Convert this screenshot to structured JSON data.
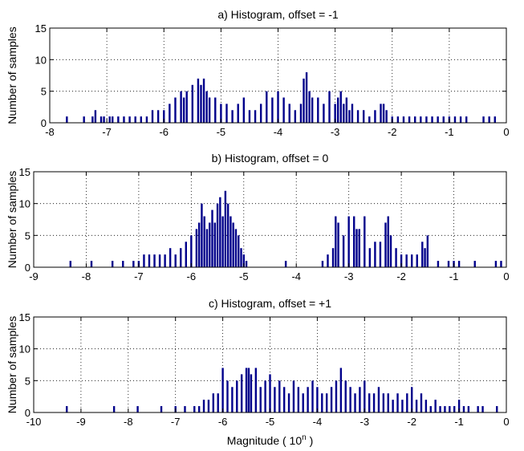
{
  "chart_data": [
    {
      "type": "bar",
      "title": "a) Histogram, offset = -1",
      "ylabel": "Number of samples",
      "xlim": [
        -8,
        0
      ],
      "ylim": [
        0,
        15
      ],
      "xticks": [
        "-8",
        "-7",
        "-6",
        "-5",
        "-4",
        "-3",
        "-2",
        "-1",
        "0"
      ],
      "yticks": [
        "0",
        "5",
        "10",
        "15"
      ],
      "grid": true,
      "color": "#00008b",
      "x": [
        -7.7,
        -7.4,
        -7.25,
        -7.2,
        -7.1,
        -7.05,
        -6.95,
        -6.9,
        -6.8,
        -6.7,
        -6.6,
        -6.5,
        -6.4,
        -6.3,
        -6.2,
        -6.1,
        -6.0,
        -5.9,
        -5.8,
        -5.7,
        -5.65,
        -5.6,
        -5.5,
        -5.4,
        -5.35,
        -5.3,
        -5.25,
        -5.2,
        -5.1,
        -5.0,
        -4.9,
        -4.8,
        -4.7,
        -4.6,
        -4.5,
        -4.4,
        -4.3,
        -4.2,
        -4.1,
        -4.0,
        -3.9,
        -3.8,
        -3.7,
        -3.6,
        -3.55,
        -3.5,
        -3.45,
        -3.4,
        -3.3,
        -3.2,
        -3.1,
        -3.0,
        -2.95,
        -2.9,
        -2.85,
        -2.8,
        -2.75,
        -2.7,
        -2.6,
        -2.5,
        -2.4,
        -2.3,
        -2.2,
        -2.15,
        -2.1,
        -2.0,
        -1.9,
        -1.8,
        -1.7,
        -1.6,
        -1.5,
        -1.4,
        -1.3,
        -1.2,
        -1.1,
        -1.0,
        -0.9,
        -0.8,
        -0.7,
        -0.4,
        -0.3,
        -0.2
      ],
      "values": [
        1,
        1,
        1,
        2,
        1,
        1,
        1,
        1,
        1,
        1,
        1,
        1,
        1,
        1,
        2,
        2,
        2,
        3,
        4,
        5,
        4,
        5,
        6,
        7,
        6,
        7,
        5,
        4,
        4,
        3,
        3,
        2,
        3,
        4,
        2,
        2,
        3,
        5,
        4,
        5,
        4,
        3,
        2,
        3,
        7,
        8,
        5,
        4,
        4,
        3,
        5,
        3,
        4,
        5,
        3,
        4,
        2,
        3,
        2,
        2,
        1,
        2,
        3,
        3,
        2,
        1,
        1,
        1,
        1,
        1,
        1,
        1,
        1,
        1,
        1,
        1,
        1,
        1,
        1,
        1,
        1,
        1
      ]
    },
    {
      "type": "bar",
      "title": "b) Histogram, offset = 0",
      "ylabel": "Number of samples",
      "xlim": [
        -9,
        0
      ],
      "ylim": [
        0,
        15
      ],
      "xticks": [
        "-9",
        "-8",
        "-7",
        "-6",
        "-5",
        "-4",
        "-3",
        "-2",
        "-1",
        "0"
      ],
      "yticks": [
        "0",
        "5",
        "10",
        "15"
      ],
      "grid": true,
      "color": "#00008b",
      "x": [
        -8.3,
        -7.9,
        -7.5,
        -7.3,
        -7.1,
        -7.0,
        -6.9,
        -6.8,
        -6.7,
        -6.6,
        -6.5,
        -6.4,
        -6.3,
        -6.2,
        -6.1,
        -6.0,
        -5.9,
        -5.85,
        -5.8,
        -5.75,
        -5.7,
        -5.65,
        -5.6,
        -5.55,
        -5.5,
        -5.45,
        -5.4,
        -5.35,
        -5.3,
        -5.25,
        -5.2,
        -5.15,
        -5.1,
        -5.05,
        -5.0,
        -4.95,
        -4.2,
        -3.5,
        -3.4,
        -3.3,
        -3.25,
        -3.2,
        -3.1,
        -3.0,
        -2.9,
        -2.85,
        -2.8,
        -2.7,
        -2.6,
        -2.5,
        -2.4,
        -2.3,
        -2.25,
        -2.2,
        -2.1,
        -2.0,
        -1.9,
        -1.8,
        -1.7,
        -1.6,
        -1.55,
        -1.5,
        -1.3,
        -1.1,
        -1.0,
        -0.9,
        -0.6,
        -0.2,
        -0.1
      ],
      "values": [
        1,
        1,
        1,
        1,
        1,
        1,
        2,
        2,
        2,
        2,
        2,
        3,
        2,
        3,
        4,
        5,
        6,
        7,
        10,
        8,
        6,
        7,
        9,
        7,
        10,
        11,
        8,
        12,
        10,
        8,
        7,
        6,
        5,
        3,
        2,
        1,
        1,
        1,
        2,
        3,
        8,
        7,
        5,
        8,
        8,
        6,
        6,
        8,
        3,
        4,
        4,
        7,
        8,
        5,
        3,
        2,
        2,
        2,
        2,
        4,
        3,
        5,
        1,
        1,
        1,
        1,
        1,
        1,
        1
      ]
    },
    {
      "type": "bar",
      "title": "c) Histogram, offset = +1",
      "ylabel": "Number of samples",
      "xlabel": "Magnitude ( 10",
      "xlabel_sup": "n",
      "xlabel_end": " )",
      "xlim": [
        -10,
        0
      ],
      "ylim": [
        0,
        15
      ],
      "xticks": [
        "-10",
        "-9",
        "-8",
        "-7",
        "-6",
        "-5",
        "-4",
        "-3",
        "-2",
        "-1",
        "0"
      ],
      "yticks": [
        "0",
        "5",
        "10",
        "15"
      ],
      "grid": true,
      "color": "#00008b",
      "x": [
        -9.3,
        -8.3,
        -7.8,
        -7.3,
        -7.0,
        -6.8,
        -6.6,
        -6.5,
        -6.4,
        -6.3,
        -6.2,
        -6.1,
        -6.0,
        -5.9,
        -5.8,
        -5.7,
        -5.6,
        -5.5,
        -5.45,
        -5.4,
        -5.3,
        -5.2,
        -5.1,
        -5.0,
        -4.9,
        -4.8,
        -4.7,
        -4.6,
        -4.5,
        -4.4,
        -4.3,
        -4.2,
        -4.1,
        -4.0,
        -3.9,
        -3.8,
        -3.7,
        -3.6,
        -3.5,
        -3.4,
        -3.3,
        -3.2,
        -3.1,
        -3.0,
        -2.9,
        -2.8,
        -2.7,
        -2.6,
        -2.5,
        -2.4,
        -2.3,
        -2.2,
        -2.1,
        -2.0,
        -1.9,
        -1.8,
        -1.7,
        -1.6,
        -1.5,
        -1.4,
        -1.3,
        -1.2,
        -1.1,
        -1.0,
        -0.9,
        -0.8,
        -0.6,
        -0.5,
        -0.2
      ],
      "values": [
        1,
        1,
        1,
        1,
        1,
        1,
        1,
        1,
        2,
        2,
        3,
        3,
        7,
        5,
        4,
        5,
        6,
        7,
        7,
        6,
        7,
        4,
        5,
        6,
        4,
        5,
        4,
        3,
        5,
        4,
        3,
        4,
        5,
        4,
        3,
        3,
        4,
        5,
        7,
        5,
        4,
        3,
        4,
        5,
        3,
        3,
        4,
        3,
        3,
        2,
        3,
        2,
        3,
        4,
        2,
        3,
        2,
        1,
        2,
        1,
        1,
        1,
        1,
        2,
        1,
        1,
        1,
        1,
        1
      ]
    }
  ]
}
